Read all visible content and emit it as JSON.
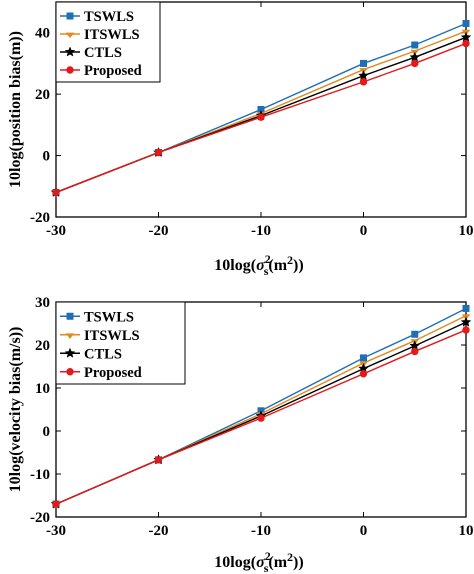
{
  "chart_data": [
    {
      "type": "line",
      "x": [
        -30,
        -20,
        -10,
        0,
        5,
        10
      ],
      "xlim": [
        -30,
        10
      ],
      "ylim": [
        -20,
        50
      ],
      "xticks": [
        "-30",
        "-20",
        "-10",
        "0",
        "10"
      ],
      "yticks": [
        "-20",
        "0",
        "20",
        "40"
      ],
      "ylabel": "10log(position bias(m))",
      "xlabel": {
        "pre": "10log(",
        "sym": "σ",
        "sub": "s",
        "sup": "2",
        "mid": "(m",
        "sup2": "2",
        "post": "))"
      },
      "grid": false,
      "legend_position": "top-left",
      "series": [
        {
          "name": "TSWLS",
          "color": "#1f6fb5",
          "marker": "square",
          "values": [
            -12,
            1,
            15,
            30,
            36,
            43
          ]
        },
        {
          "name": "ITSWLS",
          "color": "#e08a1c",
          "marker": "triangle",
          "values": [
            -12,
            1,
            13.7,
            28,
            34,
            40.5
          ]
        },
        {
          "name": "CTLS",
          "color": "#000000",
          "marker": "star",
          "values": [
            -12,
            1,
            13,
            26,
            32,
            38.5
          ]
        },
        {
          "name": "Proposed",
          "color": "#e31a1c",
          "marker": "circle",
          "values": [
            -12,
            1,
            12.5,
            24,
            30,
            36.5
          ]
        }
      ]
    },
    {
      "type": "line",
      "x": [
        -30,
        -20,
        -10,
        0,
        5,
        10
      ],
      "xlim": [
        -30,
        10
      ],
      "ylim": [
        -20,
        30
      ],
      "xticks": [
        "-30",
        "-20",
        "-10",
        "0",
        "10"
      ],
      "yticks": [
        "-20",
        "-10",
        "0",
        "10",
        "20",
        "30"
      ],
      "ylabel": "10log(velocity bias(m/s))",
      "xlabel": {
        "pre": "10log(",
        "sym": "σ",
        "sub": "s",
        "sup": "2",
        "mid": "(m",
        "sup2": "2",
        "post": "))"
      },
      "grid": false,
      "legend_position": "top-left",
      "series": [
        {
          "name": "TSWLS",
          "color": "#1f6fb5",
          "marker": "square",
          "values": [
            -17,
            -6.7,
            4.7,
            17,
            22.5,
            28.5
          ]
        },
        {
          "name": "ITSWLS",
          "color": "#e08a1c",
          "marker": "triangle",
          "values": [
            -17,
            -6.7,
            4,
            15.8,
            21,
            26.8
          ]
        },
        {
          "name": "CTLS",
          "color": "#000000",
          "marker": "star",
          "values": [
            -17,
            -6.7,
            3.5,
            14.5,
            19.8,
            25.3
          ]
        },
        {
          "name": "Proposed",
          "color": "#e31a1c",
          "marker": "circle",
          "values": [
            -17,
            -6.7,
            3,
            13.3,
            18.5,
            23.5
          ]
        }
      ]
    }
  ]
}
